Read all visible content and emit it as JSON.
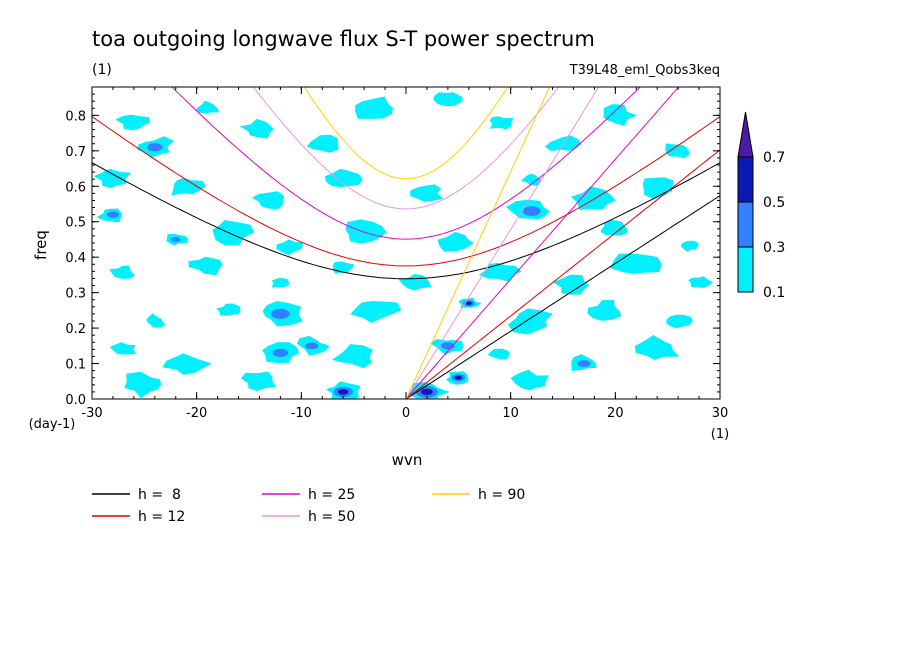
{
  "chart_data": {
    "type": "heatmap",
    "title": "toa outgoing longwave flux S-T power spectrum",
    "subtitle_units": "(1)",
    "run_label": "T39L48_eml_Qobs3keq",
    "xlabel": "wvn",
    "x_units": "(1)",
    "ylabel": "freq",
    "y_units": "(day-1)",
    "xlim": [
      -30,
      30
    ],
    "ylim": [
      0,
      0.88
    ],
    "x_ticks": [
      -30,
      -20,
      -10,
      0,
      10,
      20,
      30
    ],
    "x_tick_labels": [
      "-30",
      "-20",
      "-10",
      "0",
      "10",
      "20",
      "30"
    ],
    "y_ticks": [
      0.0,
      0.1,
      0.2,
      0.3,
      0.4,
      0.5,
      0.6,
      0.7,
      0.8
    ],
    "y_tick_labels": [
      "0.0",
      "0.1",
      "0.2",
      "0.3",
      "0.4",
      "0.5",
      "0.6",
      "0.7",
      "0.8"
    ],
    "colorbar": {
      "levels": [
        "0.1",
        "0.3",
        "0.5",
        "0.7"
      ],
      "colors": [
        "#00f0ff",
        "#3080ff",
        "#0a1ab4",
        "#4b1aa8"
      ]
    },
    "contour_patches": [
      {
        "x": -26,
        "y": 0.78,
        "level": 1
      },
      {
        "x": -24,
        "y": 0.71,
        "level": 2
      },
      {
        "x": -19,
        "y": 0.82,
        "level": 1
      },
      {
        "x": -14,
        "y": 0.76,
        "level": 1
      },
      {
        "x": -8,
        "y": 0.72,
        "level": 1
      },
      {
        "x": -3,
        "y": 0.82,
        "level": 1
      },
      {
        "x": 4,
        "y": 0.85,
        "level": 1
      },
      {
        "x": 9,
        "y": 0.78,
        "level": 1
      },
      {
        "x": 15,
        "y": 0.72,
        "level": 1
      },
      {
        "x": 20,
        "y": 0.8,
        "level": 1
      },
      {
        "x": 26,
        "y": 0.7,
        "level": 1
      },
      {
        "x": -28,
        "y": 0.62,
        "level": 1
      },
      {
        "x": -21,
        "y": 0.6,
        "level": 1
      },
      {
        "x": -13,
        "y": 0.56,
        "level": 1
      },
      {
        "x": -6,
        "y": 0.62,
        "level": 1
      },
      {
        "x": 2,
        "y": 0.58,
        "level": 1
      },
      {
        "x": 12,
        "y": 0.62,
        "level": 1
      },
      {
        "x": 18,
        "y": 0.56,
        "level": 1
      },
      {
        "x": 24,
        "y": 0.6,
        "level": 1
      },
      {
        "x": -28,
        "y": 0.52,
        "level": 2
      },
      {
        "x": -22,
        "y": 0.45,
        "level": 2
      },
      {
        "x": -17,
        "y": 0.47,
        "level": 1
      },
      {
        "x": -11,
        "y": 0.43,
        "level": 1
      },
      {
        "x": -4,
        "y": 0.47,
        "level": 1
      },
      {
        "x": 5,
        "y": 0.44,
        "level": 1
      },
      {
        "x": 12,
        "y": 0.53,
        "level": 2
      },
      {
        "x": 20,
        "y": 0.48,
        "level": 1
      },
      {
        "x": 27,
        "y": 0.43,
        "level": 1
      },
      {
        "x": -27,
        "y": 0.36,
        "level": 1
      },
      {
        "x": -19,
        "y": 0.38,
        "level": 1
      },
      {
        "x": -12,
        "y": 0.33,
        "level": 1
      },
      {
        "x": -6,
        "y": 0.37,
        "level": 1
      },
      {
        "x": 1,
        "y": 0.33,
        "level": 1
      },
      {
        "x": 9,
        "y": 0.36,
        "level": 1
      },
      {
        "x": 16,
        "y": 0.32,
        "level": 1
      },
      {
        "x": 22,
        "y": 0.38,
        "level": 1
      },
      {
        "x": 28,
        "y": 0.33,
        "level": 1
      },
      {
        "x": 6,
        "y": 0.27,
        "level": 3
      },
      {
        "x": -24,
        "y": 0.22,
        "level": 1
      },
      {
        "x": -17,
        "y": 0.25,
        "level": 1
      },
      {
        "x": -12,
        "y": 0.24,
        "level": 2
      },
      {
        "x": -3,
        "y": 0.25,
        "level": 1
      },
      {
        "x": 12,
        "y": 0.22,
        "level": 1
      },
      {
        "x": 19,
        "y": 0.25,
        "level": 1
      },
      {
        "x": 26,
        "y": 0.22,
        "level": 1
      },
      {
        "x": -27,
        "y": 0.14,
        "level": 1
      },
      {
        "x": -21,
        "y": 0.1,
        "level": 1
      },
      {
        "x": -12,
        "y": 0.13,
        "level": 2
      },
      {
        "x": -9,
        "y": 0.15,
        "level": 2
      },
      {
        "x": -5,
        "y": 0.12,
        "level": 1
      },
      {
        "x": 4,
        "y": 0.15,
        "level": 2
      },
      {
        "x": 9,
        "y": 0.13,
        "level": 1
      },
      {
        "x": 17,
        "y": 0.1,
        "level": 2
      },
      {
        "x": 24,
        "y": 0.14,
        "level": 1
      },
      {
        "x": -6,
        "y": 0.02,
        "level": 3
      },
      {
        "x": 2,
        "y": 0.02,
        "level": 3
      },
      {
        "x": 5,
        "y": 0.06,
        "level": 3
      },
      {
        "x": -14,
        "y": 0.05,
        "level": 1
      },
      {
        "x": 12,
        "y": 0.05,
        "level": 1
      },
      {
        "x": -25,
        "y": 0.04,
        "level": 1
      }
    ],
    "series": [
      {
        "name": "h =  8",
        "color": "#000000",
        "family": "kelvin+ig",
        "h": 8
      },
      {
        "name": "h = 12",
        "color": "#e60000",
        "family": "kelvin+ig",
        "h": 12
      },
      {
        "name": "h = 25",
        "color": "#e600c8",
        "family": "kelvin+ig",
        "h": 25
      },
      {
        "name": "h = 50",
        "color": "#e696e6",
        "family": "kelvin+ig",
        "h": 50
      },
      {
        "name": "h = 90",
        "color": "#ffd200",
        "family": "kelvin+ig",
        "h": 90
      }
    ],
    "legend": {
      "placement": "bottom-left",
      "items": [
        {
          "label": "h =  8",
          "color": "#000000"
        },
        {
          "label": "h = 12",
          "color": "#e60000"
        },
        {
          "label": "h = 25",
          "color": "#e600c8"
        },
        {
          "label": "h = 50",
          "color": "#e696e6"
        },
        {
          "label": "h = 90",
          "color": "#ffd200"
        }
      ]
    }
  }
}
